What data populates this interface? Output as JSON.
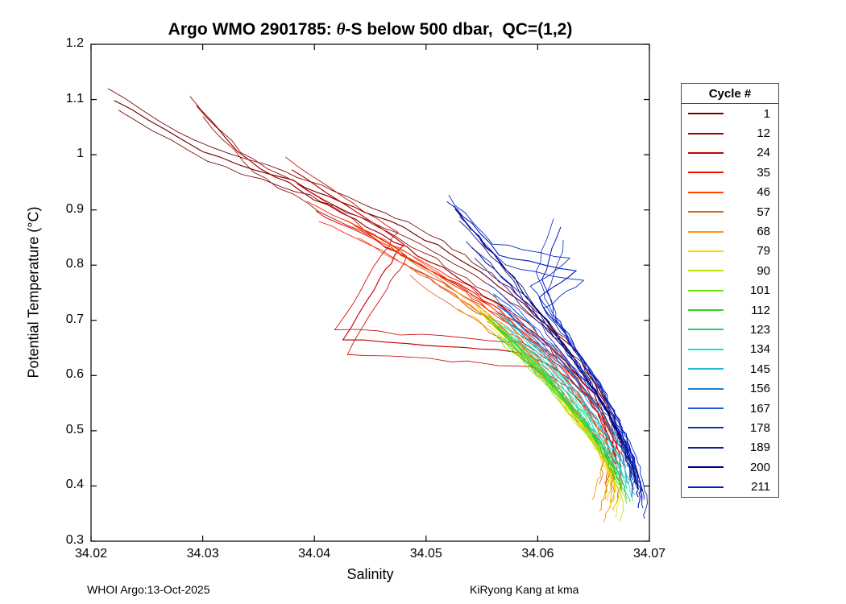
{
  "title": {
    "prefix": "Argo WMO 2901785: ",
    "theta": "θ",
    "suffix": "-S below 500 dbar,  QC=(1,2)"
  },
  "axes": {
    "xlabel": "Salinity",
    "ylabel": "Potential Temperature (°C)",
    "xticks": [
      34.02,
      34.03,
      34.04,
      34.05,
      34.06,
      34.07
    ],
    "xtick_labels": [
      "34.02",
      "34.03",
      "34.04",
      "34.05",
      "34.06",
      "34.07"
    ],
    "yticks": [
      0.3,
      0.4,
      0.5,
      0.6,
      0.7,
      0.8,
      0.9,
      1.0,
      1.1,
      1.2
    ],
    "ytick_labels": [
      "0.3",
      "0.4",
      "0.5",
      "0.6",
      "0.7",
      "0.8",
      "0.9",
      "1",
      "1.1",
      "1.2"
    ]
  },
  "legend": {
    "title": "Cycle #"
  },
  "footer": {
    "left": "WHOI Argo:13-Oct-2025",
    "right": "KiRyong Kang at kma"
  },
  "chart_data": {
    "type": "line",
    "title": "Argo WMO 2901785: θ-S below 500 dbar, QC=(1,2)",
    "xlabel": "Salinity",
    "ylabel": "Potential Temperature (°C)",
    "xlim": [
      34.02,
      34.07
    ],
    "ylim": [
      0.3,
      1.2
    ],
    "grid": false,
    "legend_title": "Cycle #",
    "legend_position": "right-outside",
    "series": [
      {
        "name": "1",
        "color": "#730000",
        "points": [
          [
            34.022,
            1.1
          ],
          [
            34.03,
            1.005
          ],
          [
            34.038,
            0.952
          ],
          [
            34.0435,
            0.905
          ],
          [
            34.049,
            0.858
          ],
          [
            34.054,
            0.8
          ],
          [
            34.058,
            0.74
          ],
          [
            34.061,
            0.69
          ],
          [
            34.0635,
            0.64
          ],
          [
            34.0655,
            0.575
          ],
          [
            34.067,
            0.51
          ],
          [
            34.0675,
            0.47
          ]
        ]
      },
      {
        "name": "12",
        "color": "#9a0000",
        "points": [
          [
            34.0295,
            1.088
          ],
          [
            34.034,
            0.99
          ],
          [
            34.04,
            0.92
          ],
          [
            34.046,
            0.855
          ],
          [
            34.0515,
            0.795
          ],
          [
            34.056,
            0.735
          ],
          [
            34.0595,
            0.68
          ],
          [
            34.0625,
            0.625
          ],
          [
            34.065,
            0.565
          ],
          [
            34.0665,
            0.505
          ],
          [
            34.067,
            0.455
          ]
        ]
      },
      {
        "name": "24",
        "color": "#c80000",
        "points": [
          [
            34.038,
            0.975
          ],
          [
            34.043,
            0.905
          ],
          [
            34.048,
            0.84
          ],
          [
            34.046,
            0.78
          ],
          [
            34.0425,
            0.665
          ],
          [
            34.052,
            0.652
          ],
          [
            34.059,
            0.64
          ],
          [
            34.0625,
            0.6
          ],
          [
            34.065,
            0.545
          ],
          [
            34.0665,
            0.49
          ],
          [
            34.067,
            0.44
          ]
        ]
      },
      {
        "name": "35",
        "color": "#ef1000",
        "points": [
          [
            34.04,
            0.9
          ],
          [
            34.0455,
            0.845
          ],
          [
            34.05,
            0.795
          ],
          [
            34.0545,
            0.745
          ],
          [
            34.058,
            0.7
          ],
          [
            34.061,
            0.65
          ],
          [
            34.0635,
            0.595
          ],
          [
            34.0655,
            0.535
          ],
          [
            34.067,
            0.475
          ],
          [
            34.0675,
            0.425
          ]
        ]
      },
      {
        "name": "46",
        "color": "#ff4500",
        "points": [
          [
            34.0435,
            0.87
          ],
          [
            34.049,
            0.805
          ],
          [
            34.0535,
            0.75
          ],
          [
            34.057,
            0.7
          ],
          [
            34.06,
            0.65
          ],
          [
            34.0625,
            0.595
          ],
          [
            34.0645,
            0.54
          ],
          [
            34.066,
            0.485
          ],
          [
            34.067,
            0.43
          ],
          [
            34.0665,
            0.39
          ]
        ]
      },
      {
        "name": "57",
        "color": "#d2691e",
        "points": [
          [
            34.048,
            0.805
          ],
          [
            34.0525,
            0.745
          ],
          [
            34.056,
            0.695
          ],
          [
            34.059,
            0.645
          ],
          [
            34.0615,
            0.59
          ],
          [
            34.0635,
            0.535
          ],
          [
            34.0655,
            0.48
          ],
          [
            34.0665,
            0.43
          ],
          [
            34.066,
            0.385
          ]
        ]
      },
      {
        "name": "68",
        "color": "#ff9800",
        "points": [
          [
            34.0525,
            0.745
          ],
          [
            34.056,
            0.695
          ],
          [
            34.059,
            0.64
          ],
          [
            34.0615,
            0.585
          ],
          [
            34.0635,
            0.53
          ],
          [
            34.0655,
            0.475
          ],
          [
            34.0665,
            0.425
          ],
          [
            34.066,
            0.38
          ],
          [
            34.0655,
            0.355
          ]
        ]
      },
      {
        "name": "79",
        "color": "#ffd700",
        "points": [
          [
            34.055,
            0.71
          ],
          [
            34.058,
            0.655
          ],
          [
            34.0605,
            0.6
          ],
          [
            34.0625,
            0.545
          ],
          [
            34.0645,
            0.495
          ],
          [
            34.066,
            0.445
          ],
          [
            34.067,
            0.4
          ],
          [
            34.0665,
            0.36
          ]
        ]
      },
      {
        "name": "90",
        "color": "#c0e010",
        "points": [
          [
            34.056,
            0.695
          ],
          [
            34.0585,
            0.64
          ],
          [
            34.061,
            0.585
          ],
          [
            34.063,
            0.535
          ],
          [
            34.065,
            0.485
          ],
          [
            34.0665,
            0.435
          ],
          [
            34.0672,
            0.39
          ],
          [
            34.0668,
            0.355
          ]
        ]
      },
      {
        "name": "101",
        "color": "#70e010",
        "points": [
          [
            34.0555,
            0.7
          ],
          [
            34.0585,
            0.645
          ],
          [
            34.061,
            0.59
          ],
          [
            34.0632,
            0.535
          ],
          [
            34.0652,
            0.482
          ],
          [
            34.0668,
            0.432
          ],
          [
            34.0675,
            0.392
          ]
        ]
      },
      {
        "name": "112",
        "color": "#2ecc2e",
        "points": [
          [
            34.056,
            0.69
          ],
          [
            34.059,
            0.632
          ],
          [
            34.0615,
            0.578
          ],
          [
            34.0638,
            0.525
          ],
          [
            34.0657,
            0.473
          ],
          [
            34.067,
            0.425
          ],
          [
            34.0675,
            0.395
          ]
        ]
      },
      {
        "name": "123",
        "color": "#20d070",
        "points": [
          [
            34.0565,
            0.685
          ],
          [
            34.0595,
            0.628
          ],
          [
            34.062,
            0.572
          ],
          [
            34.0642,
            0.52
          ],
          [
            34.066,
            0.468
          ],
          [
            34.0673,
            0.42
          ],
          [
            34.0678,
            0.39
          ]
        ]
      },
      {
        "name": "134",
        "color": "#20e0c0",
        "points": [
          [
            34.057,
            0.69
          ],
          [
            34.06,
            0.632
          ],
          [
            34.0625,
            0.576
          ],
          [
            34.0645,
            0.522
          ],
          [
            34.0663,
            0.47
          ],
          [
            34.0676,
            0.424
          ],
          [
            34.068,
            0.395
          ]
        ]
      },
      {
        "name": "145",
        "color": "#20c0d8",
        "points": [
          [
            34.057,
            0.705
          ],
          [
            34.06,
            0.648
          ],
          [
            34.0627,
            0.59
          ],
          [
            34.0648,
            0.535
          ],
          [
            34.0665,
            0.482
          ],
          [
            34.0678,
            0.435
          ],
          [
            34.0682,
            0.405
          ]
        ]
      },
      {
        "name": "156",
        "color": "#2080d0",
        "points": [
          [
            34.0565,
            0.725
          ],
          [
            34.0598,
            0.665
          ],
          [
            34.0627,
            0.607
          ],
          [
            34.065,
            0.55
          ],
          [
            34.0668,
            0.497
          ],
          [
            34.068,
            0.448
          ],
          [
            34.0684,
            0.415
          ]
        ]
      },
      {
        "name": "167",
        "color": "#2058e0",
        "points": [
          [
            34.056,
            0.75
          ],
          [
            34.0595,
            0.688
          ],
          [
            34.0625,
            0.628
          ],
          [
            34.065,
            0.57
          ],
          [
            34.067,
            0.515
          ],
          [
            34.0682,
            0.463
          ],
          [
            34.0686,
            0.425
          ]
        ]
      },
      {
        "name": "178",
        "color": "#1830c8",
        "points": [
          [
            34.062,
            0.87
          ],
          [
            34.0605,
            0.772
          ],
          [
            34.0615,
            0.712
          ],
          [
            34.0635,
            0.648
          ],
          [
            34.0655,
            0.588
          ],
          [
            34.067,
            0.53
          ],
          [
            34.0681,
            0.475
          ],
          [
            34.0687,
            0.43
          ],
          [
            34.0689,
            0.395
          ]
        ]
      },
      {
        "name": "189",
        "color": "#1018a0",
        "points": [
          [
            34.054,
            0.832
          ],
          [
            34.0575,
            0.762
          ],
          [
            34.0605,
            0.695
          ],
          [
            34.063,
            0.632
          ],
          [
            34.0652,
            0.572
          ],
          [
            34.0668,
            0.515
          ],
          [
            34.068,
            0.462
          ],
          [
            34.0687,
            0.415
          ],
          [
            34.069,
            0.38
          ]
        ]
      },
      {
        "name": "200",
        "color": "#000080",
        "points": [
          [
            34.0525,
            0.9
          ],
          [
            34.056,
            0.82
          ],
          [
            34.059,
            0.745
          ],
          [
            34.0618,
            0.672
          ],
          [
            34.0642,
            0.605
          ],
          [
            34.066,
            0.545
          ],
          [
            34.0675,
            0.49
          ],
          [
            34.0685,
            0.44
          ],
          [
            34.069,
            0.395
          ]
        ]
      },
      {
        "name": "211",
        "color": "#0020c0",
        "points": [
          [
            34.0525,
            0.908
          ],
          [
            34.0565,
            0.82
          ],
          [
            34.0635,
            0.79
          ],
          [
            34.06,
            0.74
          ],
          [
            34.0625,
            0.672
          ],
          [
            34.0648,
            0.605
          ],
          [
            34.0665,
            0.545
          ],
          [
            34.0678,
            0.492
          ],
          [
            34.0687,
            0.442
          ],
          [
            34.0692,
            0.392
          ],
          [
            34.069,
            0.36
          ]
        ]
      }
    ]
  }
}
